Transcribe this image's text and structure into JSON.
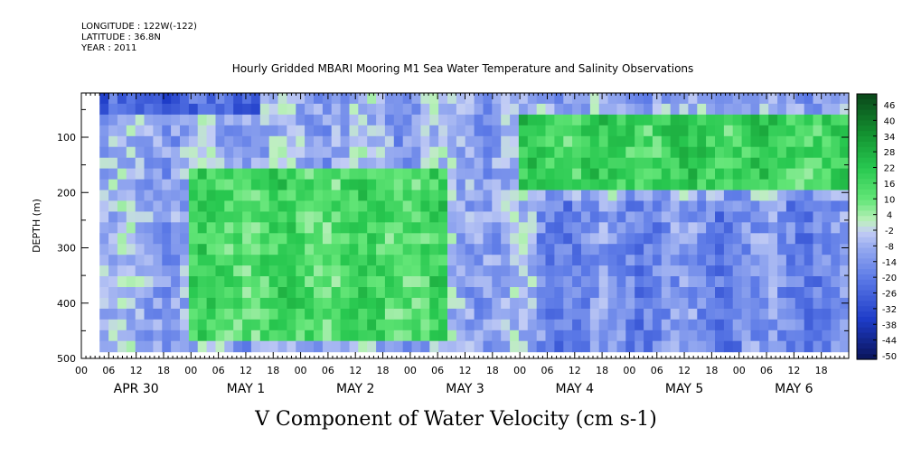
{
  "header": {
    "longitude": "LONGITUDE : 122W(-122)",
    "latitude": "LATITUDE : 36.8N",
    "year": "YEAR : 2011"
  },
  "chart_data": {
    "type": "heatmap",
    "title": "Hourly Gridded MBARI Mooring M1 Sea Water Temperature and Salinity Observations",
    "footer_title": "V Component of Water Velocity (cm s-1)",
    "ylabel": "DEPTH (m)",
    "y_axis": {
      "ticks": [
        100,
        200,
        300,
        400,
        500
      ],
      "range": [
        20,
        500
      ],
      "inverted": true
    },
    "x_axis": {
      "hour_ticks": [
        "00",
        "06",
        "12",
        "18",
        "00",
        "06",
        "12",
        "18",
        "00",
        "06",
        "12",
        "18",
        "00",
        "06",
        "12",
        "18",
        "00",
        "06",
        "12",
        "18",
        "00",
        "06",
        "12",
        "18",
        "00",
        "06",
        "12",
        "18"
      ],
      "day_labels": [
        "APR 30",
        "MAY 1",
        "MAY 2",
        "MAY 3",
        "MAY 4",
        "MAY 5",
        "MAY 6"
      ],
      "range_hours": [
        0,
        168
      ]
    },
    "colorbar": {
      "labels": [
        "46",
        "40",
        "34",
        "28",
        "22",
        "16",
        "10",
        "4",
        "-2",
        "-8",
        "-14",
        "-20",
        "-26",
        "-32",
        "-38",
        "-44",
        "-50"
      ],
      "range": [
        -50,
        50
      ]
    },
    "pattern": {
      "description_values": [
        {
          "hours": [
            4,
            40
          ],
          "depth": [
            20,
            60
          ],
          "v": -25
        },
        {
          "hours": [
            24,
            80
          ],
          "depth": [
            150,
            460
          ],
          "v": 15
        },
        {
          "hours": [
            96,
            168
          ],
          "depth": [
            60,
            200
          ],
          "v": 18
        },
        {
          "hours": [
            100,
            168
          ],
          "depth": [
            220,
            480
          ],
          "v": -15
        }
      ]
    }
  }
}
